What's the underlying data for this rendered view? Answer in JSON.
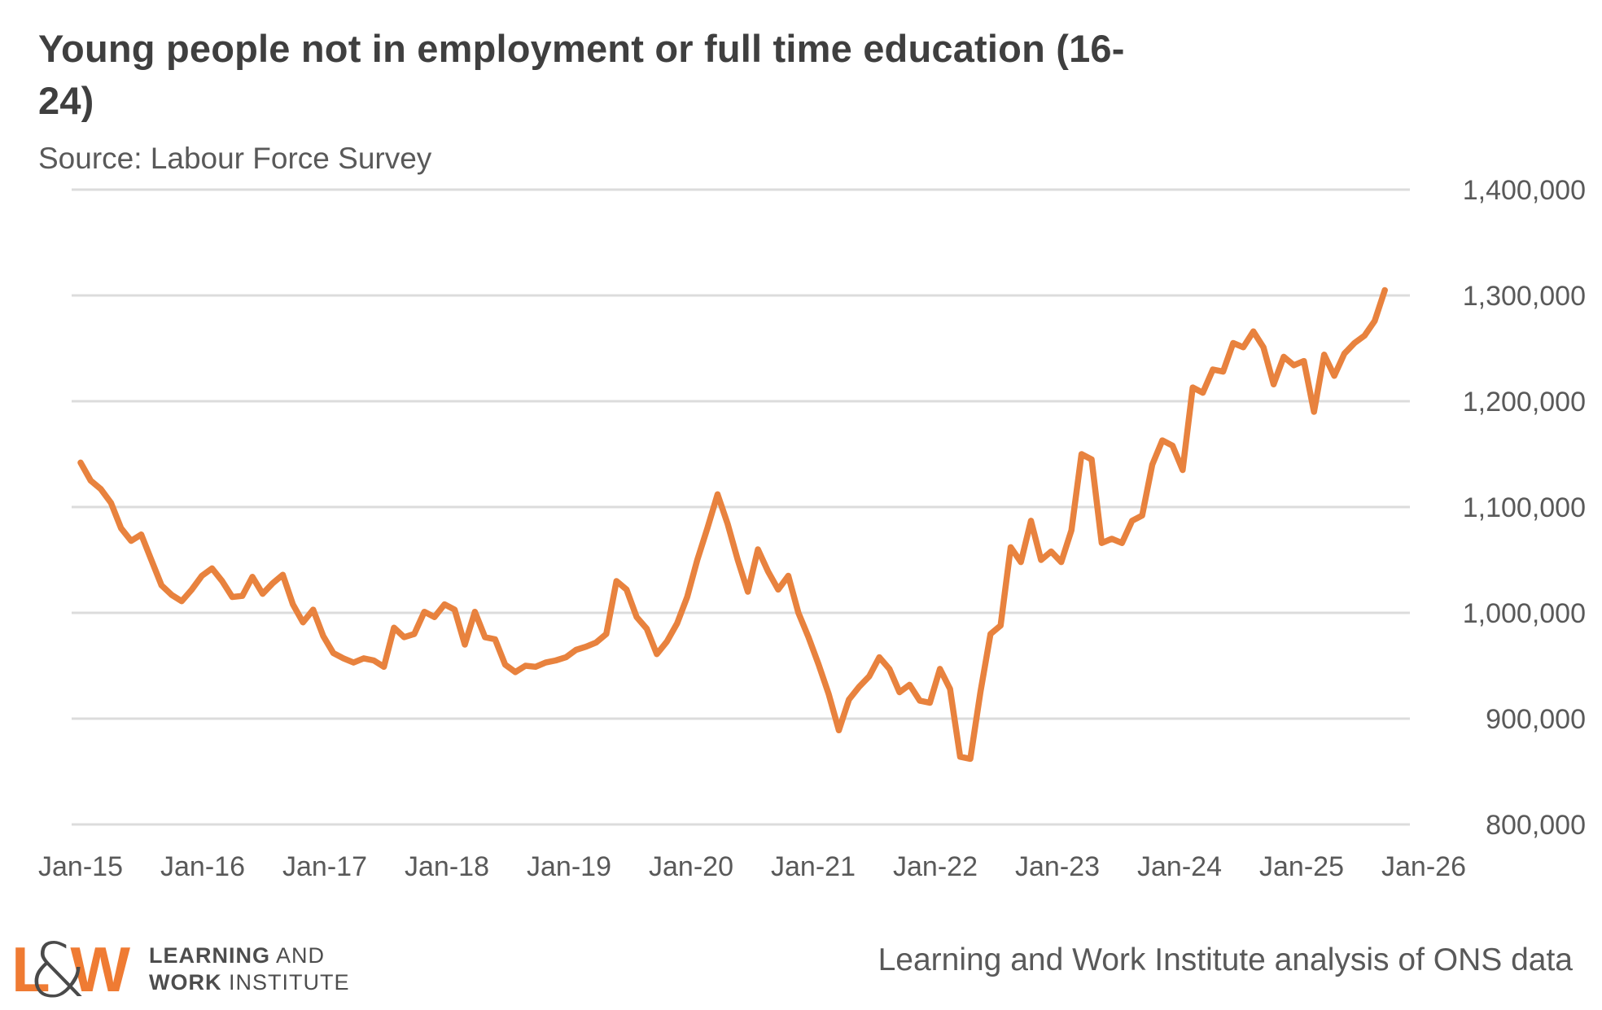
{
  "header": {
    "title_line1": "Young people not in employment or full time education (16-",
    "title_line2": "24)",
    "source": "Source: Labour Force Survey"
  },
  "chart_data": {
    "type": "line",
    "title": "Young people not in employment or full time education (16-24)",
    "subtitle": "Source: Labour Force Survey",
    "xlabel": "",
    "ylabel": "",
    "ylim": [
      800000,
      1400000
    ],
    "grid": "horizontal-only",
    "legend": "none",
    "x_start": "Jan-15",
    "frequency": "monthly",
    "x_tick_labels": [
      "Jan-15",
      "Jan-16",
      "Jan-17",
      "Jan-18",
      "Jan-19",
      "Jan-20",
      "Jan-21",
      "Jan-22",
      "Jan-23",
      "Jan-24",
      "Jan-25",
      "Jan-26"
    ],
    "y_ticks": [
      {
        "value": 1400000,
        "label": "1,400,000"
      },
      {
        "value": 1300000,
        "label": "1,300,000"
      },
      {
        "value": 1200000,
        "label": "1,200,000"
      },
      {
        "value": 1100000,
        "label": "1,100,000"
      },
      {
        "value": 1000000,
        "label": "1,000,000"
      },
      {
        "value": 900000,
        "label": "900,000"
      },
      {
        "value": 800000,
        "label": "800,000"
      }
    ],
    "series": [
      {
        "name": "Young people not in employment or full time education (16-24)",
        "color": "#e8823e",
        "values": [
          1142000,
          1125000,
          1117000,
          1104000,
          1080000,
          1068000,
          1074000,
          1050000,
          1026000,
          1017000,
          1011000,
          1022000,
          1035000,
          1042000,
          1030000,
          1015000,
          1016000,
          1034000,
          1018000,
          1028000,
          1036000,
          1008000,
          991000,
          1003000,
          978000,
          962000,
          957000,
          953000,
          957000,
          955000,
          949000,
          986000,
          977000,
          980000,
          1001000,
          996000,
          1008000,
          1003000,
          970000,
          1001000,
          977000,
          975000,
          951000,
          944000,
          950000,
          949000,
          953000,
          955000,
          958000,
          965000,
          968000,
          972000,
          980000,
          1030000,
          1022000,
          996000,
          985000,
          961000,
          973000,
          990000,
          1015000,
          1050000,
          1080000,
          1112000,
          1084000,
          1050000,
          1020000,
          1060000,
          1039000,
          1022000,
          1035000,
          1000000,
          977000,
          951000,
          923000,
          889000,
          918000,
          930000,
          940000,
          958000,
          947000,
          925000,
          932000,
          917000,
          915000,
          947000,
          928000,
          864000,
          862000,
          925000,
          980000,
          988000,
          1062000,
          1048000,
          1087000,
          1050000,
          1058000,
          1048000,
          1078000,
          1150000,
          1145000,
          1066000,
          1070000,
          1066000,
          1087000,
          1092000,
          1140000,
          1163000,
          1158000,
          1135000,
          1213000,
          1208000,
          1230000,
          1228000,
          1255000,
          1251000,
          1266000,
          1251000,
          1216000,
          1242000,
          1234000,
          1238000,
          1190000,
          1244000,
          1224000,
          1245000,
          1255000,
          1262000,
          1276000,
          1305000
        ]
      }
    ]
  },
  "colors": {
    "line": "#e8823e",
    "grid": "#dcdcdc",
    "axis_text": "#595959",
    "title_text": "#3f3f3f",
    "logo_orange": "#ef7b33",
    "logo_gray": "#4a4a4a"
  },
  "footer": {
    "logo": {
      "l": "L",
      "amp": "&",
      "w": "W",
      "line1_bold": "LEARNING",
      "line1_rest": " AND",
      "line2_bold": "WORK",
      "line2_rest": " INSTITUTE"
    },
    "attribution": "Learning and Work Institute analysis of ONS data"
  }
}
